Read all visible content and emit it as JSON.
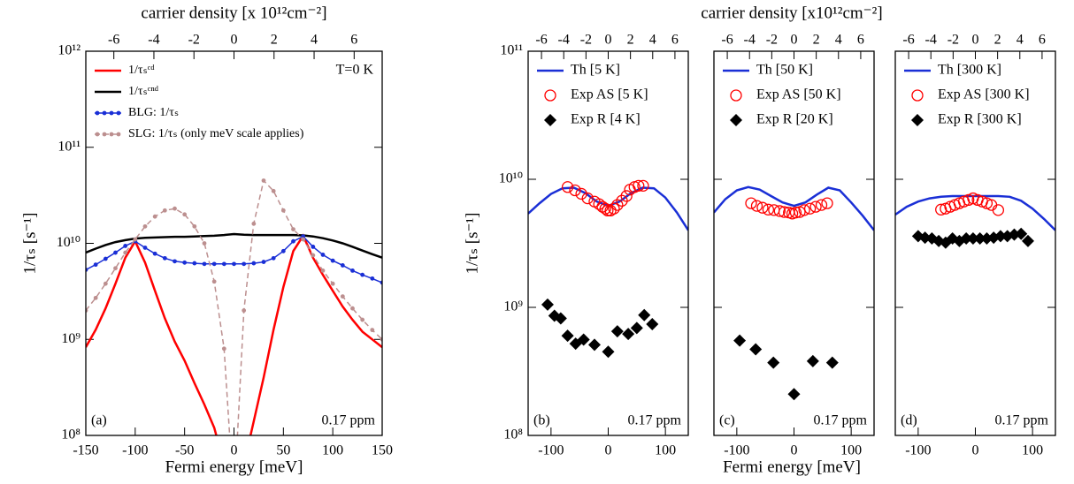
{
  "chart_data": [
    {
      "type": "line",
      "yscale": "log",
      "legend": "upper left",
      "xlabel": "Fermi energy [meV]",
      "ylabel": "1/τₛ [s⁻¹]",
      "x2label": "carrier density [x 10¹²cm⁻²]",
      "panel_label": "(a)",
      "note": "0.17 ppm",
      "temperature_note": "T=0 K",
      "xlim": [
        -150,
        150
      ],
      "xticks": [
        -150,
        -100,
        -50,
        0,
        50,
        100,
        150
      ],
      "x2lim": [
        -7.4,
        7.4
      ],
      "x2ticks": [
        -6,
        -4,
        -2,
        0,
        2,
        4,
        6
      ],
      "ylim": [
        100000000.0,
        1000000000000.0
      ],
      "yticks": [
        {
          "value": 100000000.0,
          "label": "10⁸"
        },
        {
          "value": 1000000000.0,
          "label": "10⁹"
        },
        {
          "value": 10000000000.0,
          "label": "10¹⁰"
        },
        {
          "value": 100000000000.0,
          "label": "10¹¹"
        },
        {
          "value": 1000000000000.0,
          "label": "10¹²"
        }
      ],
      "x": [
        -150,
        -140,
        -130,
        -120,
        -110,
        -100,
        -90,
        -80,
        -70,
        -60,
        -50,
        -40,
        -30,
        -20,
        -10,
        0,
        10,
        20,
        30,
        40,
        50,
        60,
        70,
        80,
        90,
        100,
        110,
        120,
        130,
        140,
        150
      ],
      "series": [
        {
          "name": "1/τₛᶜᵈ",
          "color": "#ff0000",
          "marker": "line",
          "values": [
            830000000.0,
            1260000000.0,
            2100000000.0,
            3800000000.0,
            7100000000.0,
            10500000000.0,
            6300000000.0,
            3200000000.0,
            1660000000.0,
            950000000.0,
            600000000.0,
            350000000.0,
            210000000.0,
            120000000.0,
            50000000.0,
            null,
            50000000.0,
            140000000.0,
            400000000.0,
            1260000000.0,
            3500000000.0,
            8300000000.0,
            12000000000.0,
            7100000000.0,
            4700000000.0,
            3200000000.0,
            2200000000.0,
            1600000000.0,
            1200000000.0,
            1000000000.0,
            830000000.0
          ]
        },
        {
          "name": "1/τₛᶜⁿᵈ",
          "color": "#000000",
          "marker": "line",
          "values": [
            8000000000.0,
            8800000000.0,
            9600000000.0,
            10300000000.0,
            10800000000.0,
            11200000000.0,
            11400000000.0,
            11500000000.0,
            11600000000.0,
            11700000000.0,
            11700000000.0,
            11800000000.0,
            11900000000.0,
            12000000000.0,
            12200000000.0,
            12500000000.0,
            12300000000.0,
            12200000000.0,
            12200000000.0,
            12200000000.0,
            12200000000.0,
            12200000000.0,
            12100000000.0,
            11800000000.0,
            11300000000.0,
            10700000000.0,
            10000000000.0,
            9200000000.0,
            8400000000.0,
            7700000000.0,
            7100000000.0
          ]
        },
        {
          "name": "BLG: 1/τₛ",
          "color": "#1a2fd6",
          "marker": "line+dots",
          "values": [
            5300000000.0,
            6000000000.0,
            6900000000.0,
            8000000000.0,
            9400000000.0,
            10500000000.0,
            9000000000.0,
            7800000000.0,
            7000000000.0,
            6500000000.0,
            6300000000.0,
            6200000000.0,
            6100000000.0,
            6100000000.0,
            6100000000.0,
            6100000000.0,
            6100000000.0,
            6200000000.0,
            6400000000.0,
            7000000000.0,
            8300000000.0,
            10500000000.0,
            11800000000.0,
            9200000000.0,
            7600000000.0,
            6600000000.0,
            5900000000.0,
            5200000000.0,
            4700000000.0,
            4300000000.0,
            3900000000.0
          ]
        },
        {
          "name": "SLG: 1/τₛ (only meV scale applies)",
          "color": "#bc8f8f",
          "marker": "dashed+dots",
          "values": [
            2000000000.0,
            2700000000.0,
            3800000000.0,
            5500000000.0,
            8000000000.0,
            11000000000.0,
            15000000000.0,
            19000000000.0,
            22000000000.0,
            23000000000.0,
            20000000000.0,
            15000000000.0,
            10000000000.0,
            4000000000.0,
            800000000.0,
            20000000.0,
            2000000000.0,
            16000000000.0,
            45000000000.0,
            35000000000.0,
            22000000000.0,
            14000000000.0,
            11000000000.0,
            7500000000.0,
            5200000000.0,
            3800000000.0,
            2800000000.0,
            2100000000.0,
            1600000000.0,
            1250000000.0,
            1000000000.0
          ]
        }
      ]
    },
    {
      "type": "line",
      "yscale": "log",
      "legend": "upper left",
      "xlabel": "Fermi energy [meV]",
      "ylabel": "1/τₛ [s⁻¹]",
      "x2label": "carrier density [x10¹²cm⁻²]",
      "panel_label": "(b)",
      "note": "0.17 ppm",
      "xlim": [
        -140,
        140
      ],
      "xticks": [
        -100,
        0,
        100
      ],
      "x2lim": [
        -7.2,
        7.2
      ],
      "x2ticks": [
        -6,
        -4,
        -2,
        0,
        2,
        4,
        6
      ],
      "ylim": [
        100000000.0,
        100000000000.0
      ],
      "yticks": [
        {
          "value": 100000000.0,
          "label": "10⁸"
        },
        {
          "value": 1000000000.0,
          "label": "10⁹"
        },
        {
          "value": 10000000000.0,
          "label": "10¹⁰"
        },
        {
          "value": 100000000000.0,
          "label": "10¹¹"
        }
      ],
      "series": [
        {
          "name": "Th [5 K]",
          "color": "#1a2fd6",
          "marker": "line",
          "x": [
            -140,
            -120,
            -100,
            -80,
            -60,
            -40,
            -20,
            0,
            20,
            40,
            60,
            80,
            100,
            120,
            140
          ],
          "values": [
            5400000000.0,
            6500000000.0,
            7700000000.0,
            8500000000.0,
            8600000000.0,
            7800000000.0,
            6700000000.0,
            6200000000.0,
            6700000000.0,
            7800000000.0,
            8600000000.0,
            8500000000.0,
            7200000000.0,
            5500000000.0,
            4000000000.0
          ]
        },
        {
          "name": "Exp AS [5 K]",
          "color": "#ff0000",
          "marker": "circle-open",
          "x": [
            -71,
            -58,
            -47,
            -36,
            -24,
            -16,
            -10,
            -5,
            -1,
            4,
            10,
            16,
            24,
            32,
            38,
            46,
            53,
            61
          ],
          "values": [
            8700000000.0,
            8200000000.0,
            7700000000.0,
            7100000000.0,
            6700000000.0,
            6400000000.0,
            6100000000.0,
            5900000000.0,
            5700000000.0,
            5700000000.0,
            5900000000.0,
            6300000000.0,
            6800000000.0,
            7400000000.0,
            8300000000.0,
            8700000000.0,
            8900000000.0,
            8900000000.0
          ]
        },
        {
          "name": "Exp R [4 K]",
          "color": "#000000",
          "marker": "diamond",
          "x": [
            -106,
            -94,
            -83,
            -71,
            -57,
            -43,
            -24,
            0,
            16,
            35,
            50,
            63,
            77
          ],
          "values": [
            1050000000.0,
            860000000.0,
            820000000.0,
            600000000.0,
            520000000.0,
            560000000.0,
            510000000.0,
            450000000.0,
            650000000.0,
            620000000.0,
            690000000.0,
            870000000.0,
            740000000.0
          ]
        }
      ]
    },
    {
      "type": "line",
      "yscale": "log",
      "legend": "upper left",
      "panel_label": "(c)",
      "note": "0.17 ppm",
      "xlim": [
        -140,
        140
      ],
      "xticks": [
        -100,
        0,
        100
      ],
      "x2lim": [
        -7.2,
        7.2
      ],
      "x2ticks": [
        -6,
        -4,
        -2,
        0,
        2,
        4,
        6
      ],
      "ylim": [
        100000000.0,
        100000000000.0
      ],
      "series": [
        {
          "name": "Th [50 K]",
          "color": "#1a2fd6",
          "marker": "line",
          "x": [
            -140,
            -120,
            -100,
            -80,
            -60,
            -40,
            -20,
            0,
            20,
            40,
            60,
            80,
            100,
            120,
            140
          ],
          "values": [
            5500000000.0,
            7000000000.0,
            8200000000.0,
            8700000000.0,
            8300000000.0,
            7400000000.0,
            6600000000.0,
            6200000000.0,
            6600000000.0,
            7600000000.0,
            8600000000.0,
            8200000000.0,
            6600000000.0,
            5200000000.0,
            4000000000.0
          ]
        },
        {
          "name": "Exp AS [50 K]",
          "color": "#ff0000",
          "marker": "circle-open",
          "x": [
            -75,
            -65,
            -55,
            -45,
            -35,
            -25,
            -17,
            -9,
            -3,
            3,
            10,
            18,
            28,
            38,
            48,
            58
          ],
          "values": [
            6500000000.0,
            6200000000.0,
            6000000000.0,
            5800000000.0,
            5750000000.0,
            5650000000.0,
            5550000000.0,
            5500000000.0,
            5400000000.0,
            5500000000.0,
            5550000000.0,
            5750000000.0,
            5900000000.0,
            6100000000.0,
            6300000000.0,
            6500000000.0
          ]
        },
        {
          "name": "Exp R [20 K]",
          "color": "#000000",
          "marker": "diamond",
          "x": [
            -95,
            -67,
            -36,
            0,
            33,
            67
          ],
          "values": [
            550000000.0,
            470000000.0,
            370000000.0,
            210000000.0,
            380000000.0,
            370000000.0
          ]
        }
      ]
    },
    {
      "type": "line",
      "yscale": "log",
      "legend": "upper left",
      "panel_label": "(d)",
      "note": "0.17 ppm",
      "xlim": [
        -140,
        140
      ],
      "xticks": [
        -100,
        0,
        100
      ],
      "x2lim": [
        -7.2,
        7.2
      ],
      "x2ticks": [
        -6,
        -4,
        -2,
        0,
        2,
        4,
        6
      ],
      "ylim": [
        100000000.0,
        100000000000.0
      ],
      "series": [
        {
          "name": "Th [300 K]",
          "color": "#1a2fd6",
          "marker": "line",
          "x": [
            -140,
            -120,
            -100,
            -80,
            -60,
            -40,
            -20,
            0,
            20,
            40,
            60,
            80,
            100,
            120,
            140
          ],
          "values": [
            5300000000.0,
            6100000000.0,
            6700000000.0,
            7100000000.0,
            7300000000.0,
            7400000000.0,
            7400000000.0,
            7400000000.0,
            7400000000.0,
            7400000000.0,
            7300000000.0,
            6800000000.0,
            5900000000.0,
            4900000000.0,
            4000000000.0
          ]
        },
        {
          "name": "Exp AS [300 K]",
          "color": "#ff0000",
          "marker": "circle-open",
          "x": [
            -60,
            -52,
            -44,
            -36,
            -28,
            -20,
            -12,
            -4,
            4,
            12,
            20,
            28,
            40
          ],
          "values": [
            5800000000.0,
            5900000000.0,
            6100000000.0,
            6300000000.0,
            6500000000.0,
            6700000000.0,
            6900000000.0,
            7100000000.0,
            6900000000.0,
            6700000000.0,
            6500000000.0,
            6300000000.0,
            5750000000.0
          ]
        },
        {
          "name": "Exp R [300 K]",
          "color": "#000000",
          "marker": "diamond",
          "x": [
            -100,
            -88,
            -76,
            -64,
            -52,
            -40,
            -28,
            -16,
            -4,
            8,
            20,
            32,
            44,
            56,
            68,
            80,
            92
          ],
          "values": [
            3600000000.0,
            3500000000.0,
            3450000000.0,
            3300000000.0,
            3200000000.0,
            3450000000.0,
            3300000000.0,
            3450000000.0,
            3450000000.0,
            3450000000.0,
            3450000000.0,
            3500000000.0,
            3600000000.0,
            3600000000.0,
            3700000000.0,
            3750000000.0,
            3300000000.0
          ]
        }
      ]
    }
  ]
}
